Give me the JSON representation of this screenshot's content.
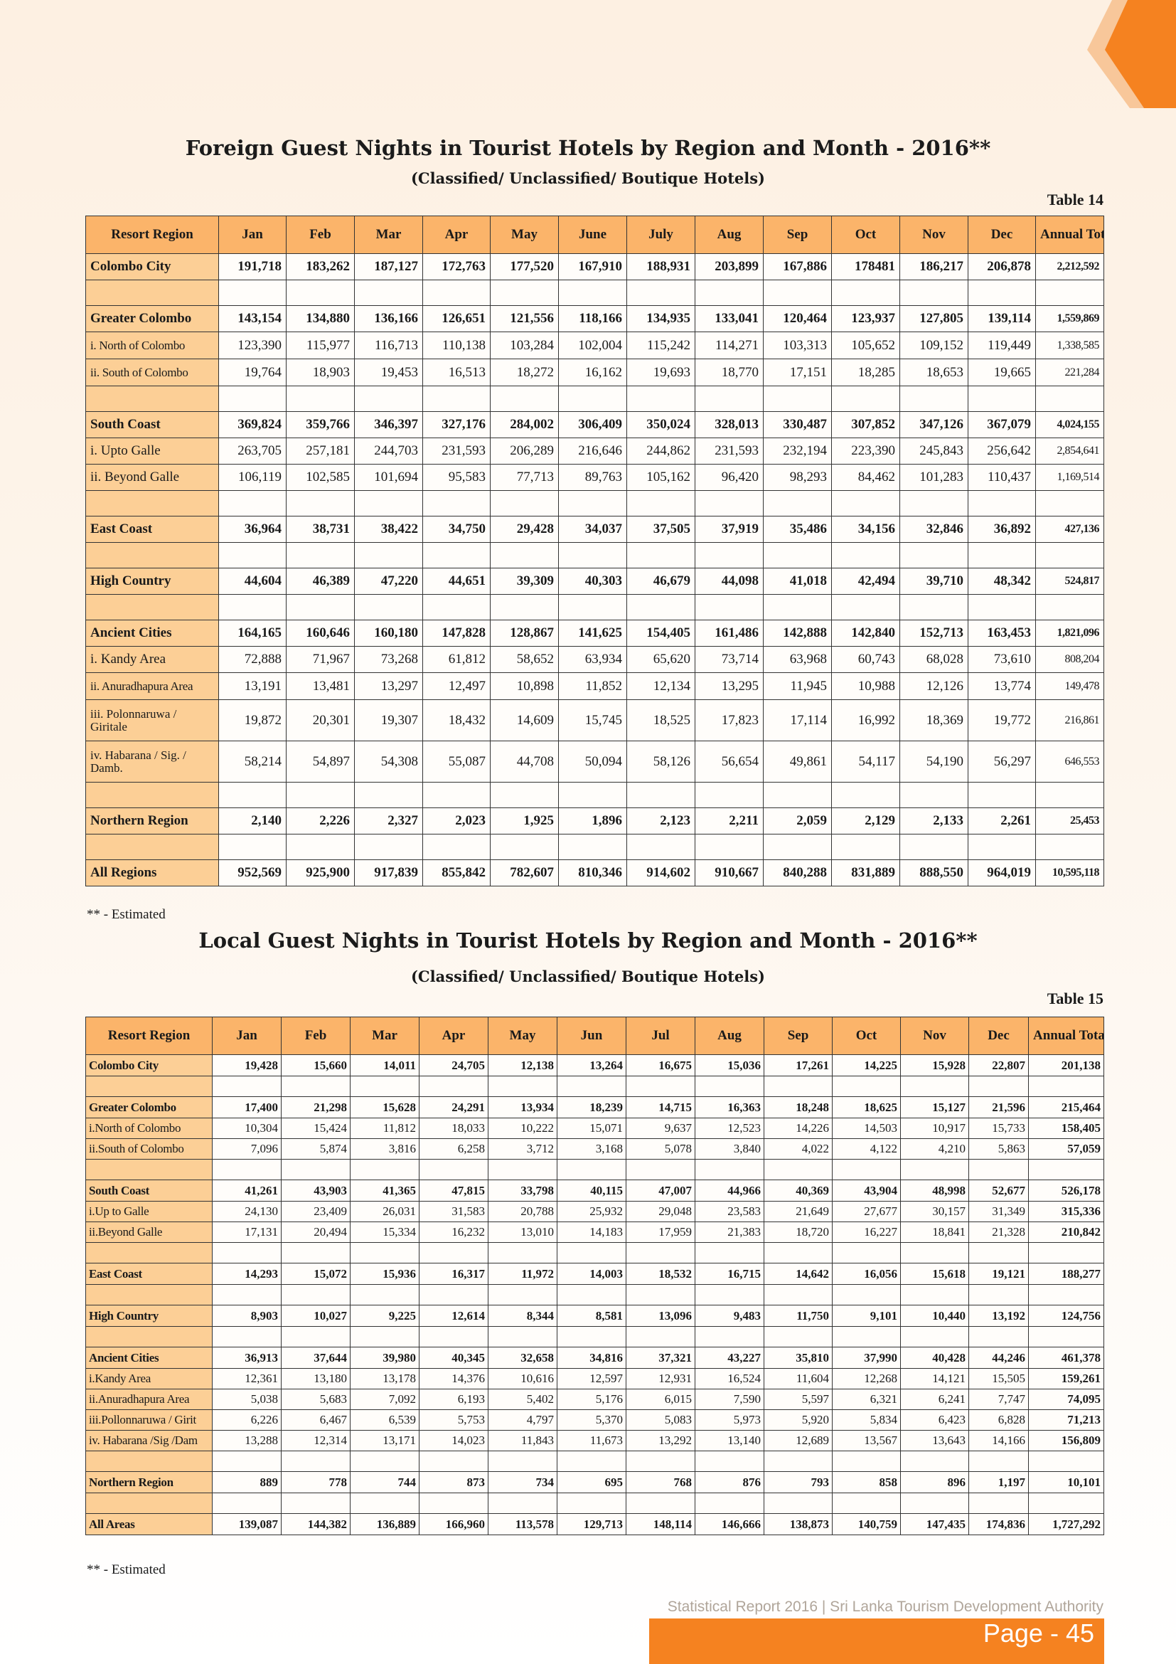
{
  "accent_color": "#f58220",
  "header_fill": "#fbb46a",
  "region_fill": "#fccf96",
  "table14": {
    "title": "Foreign Guest Nights in Tourist Hotels by Region and Month - 2016**",
    "subtitle": "(Classified/ Unclassified/ Boutique Hotels)",
    "label": "Table 14",
    "columns": [
      "Resort Region",
      "Jan",
      "Feb",
      "Mar",
      "Apr",
      "May",
      "June",
      "July",
      "Aug",
      "Sep",
      "Oct",
      "Nov",
      "Dec",
      "Annual Total"
    ],
    "rows": [
      {
        "type": "bold",
        "cells": [
          "Colombo City",
          "191,718",
          "183,262",
          "187,127",
          "172,763",
          "177,520",
          "167,910",
          "188,931",
          "203,899",
          "167,886",
          "178481",
          "186,217",
          "206,878",
          "2,212,592"
        ]
      },
      {
        "type": "blank",
        "cells": [
          "",
          "",
          "",
          "",
          "",
          "",
          "",
          "",
          "",
          "",
          "",
          "",
          "",
          ""
        ]
      },
      {
        "type": "bold",
        "cells": [
          "Greater Colombo",
          "143,154",
          "134,880",
          "136,166",
          "126,651",
          "121,556",
          "118,166",
          "134,935",
          "133,041",
          "120,464",
          "123,937",
          "127,805",
          "139,114",
          "1,559,869"
        ]
      },
      {
        "type": "sub",
        "cells": [
          "i. North of Colombo",
          "123,390",
          "115,977",
          "116,713",
          "110,138",
          "103,284",
          "102,004",
          "115,242",
          "114,271",
          "103,313",
          "105,652",
          "109,152",
          "119,449",
          "1,338,585"
        ]
      },
      {
        "type": "sub",
        "cells": [
          "ii. South of Colombo",
          "19,764",
          "18,903",
          "19,453",
          "16,513",
          "18,272",
          "16,162",
          "19,693",
          "18,770",
          "17,151",
          "18,285",
          "18,653",
          "19,665",
          "221,284"
        ]
      },
      {
        "type": "blank",
        "cells": [
          "",
          "",
          "",
          "",
          "",
          "",
          "",
          "",
          "",
          "",
          "",
          "",
          "",
          ""
        ]
      },
      {
        "type": "bold",
        "cells": [
          "South Coast",
          "369,824",
          "359,766",
          "346,397",
          "327,176",
          "284,002",
          "306,409",
          "350,024",
          "328,013",
          "330,487",
          "307,852",
          "347,126",
          "367,079",
          "4,024,155"
        ]
      },
      {
        "type": "normal",
        "cells": [
          "i. Upto Galle",
          "263,705",
          "257,181",
          "244,703",
          "231,593",
          "206,289",
          "216,646",
          "244,862",
          "231,593",
          "232,194",
          "223,390",
          "245,843",
          "256,642",
          "2,854,641"
        ]
      },
      {
        "type": "normal",
        "cells": [
          "ii. Beyond Galle",
          "106,119",
          "102,585",
          "101,694",
          "95,583",
          "77,713",
          "89,763",
          "105,162",
          "96,420",
          "98,293",
          "84,462",
          "101,283",
          "110,437",
          "1,169,514"
        ]
      },
      {
        "type": "blank",
        "cells": [
          "",
          "",
          "",
          "",
          "",
          "",
          "",
          "",
          "",
          "",
          "",
          "",
          "",
          ""
        ]
      },
      {
        "type": "bold",
        "cells": [
          "East Coast",
          "36,964",
          "38,731",
          "38,422",
          "34,750",
          "29,428",
          "34,037",
          "37,505",
          "37,919",
          "35,486",
          "34,156",
          "32,846",
          "36,892",
          "427,136"
        ]
      },
      {
        "type": "blank",
        "cells": [
          "",
          "",
          "",
          "",
          "",
          "",
          "",
          "",
          "",
          "",
          "",
          "",
          "",
          ""
        ]
      },
      {
        "type": "bold",
        "cells": [
          "High Country",
          "44,604",
          "46,389",
          "47,220",
          "44,651",
          "39,309",
          "40,303",
          "46,679",
          "44,098",
          "41,018",
          "42,494",
          "39,710",
          "48,342",
          "524,817"
        ]
      },
      {
        "type": "blank",
        "cells": [
          "",
          "",
          "",
          "",
          "",
          "",
          "",
          "",
          "",
          "",
          "",
          "",
          "",
          ""
        ]
      },
      {
        "type": "bold",
        "cells": [
          "Ancient Cities",
          "164,165",
          "160,646",
          "160,180",
          "147,828",
          "128,867",
          "141,625",
          "154,405",
          "161,486",
          "142,888",
          "142,840",
          "152,713",
          "163,453",
          "1,821,096"
        ]
      },
      {
        "type": "normal",
        "cells": [
          "i. Kandy Area",
          "72,888",
          "71,967",
          "73,268",
          "61,812",
          "58,652",
          "63,934",
          "65,620",
          "73,714",
          "63,968",
          "60,743",
          "68,028",
          "73,610",
          "808,204"
        ]
      },
      {
        "type": "sub",
        "cells": [
          "ii. Anuradhapura Area",
          "13,191",
          "13,481",
          "13,297",
          "12,497",
          "10,898",
          "11,852",
          "12,134",
          "13,295",
          "11,945",
          "10,988",
          "12,126",
          "13,774",
          "149,478"
        ]
      },
      {
        "type": "wrap",
        "cells": [
          "iii. Polonnaruwa / Giritale",
          "19,872",
          "20,301",
          "19,307",
          "18,432",
          "14,609",
          "15,745",
          "18,525",
          "17,823",
          "17,114",
          "16,992",
          "18,369",
          "19,772",
          "216,861"
        ]
      },
      {
        "type": "wrap",
        "cells": [
          "iv. Habarana / Sig. / Damb.",
          "58,214",
          "54,897",
          "54,308",
          "55,087",
          "44,708",
          "50,094",
          "58,126",
          "56,654",
          "49,861",
          "54,117",
          "54,190",
          "56,297",
          "646,553"
        ]
      },
      {
        "type": "blank",
        "cells": [
          "",
          "",
          "",
          "",
          "",
          "",
          "",
          "",
          "",
          "",
          "",
          "",
          "",
          ""
        ]
      },
      {
        "type": "bold",
        "cells": [
          "Northern Region",
          "2,140",
          "2,226",
          "2,327",
          "2,023",
          "1,925",
          "1,896",
          "2,123",
          "2,211",
          "2,059",
          "2,129",
          "2,133",
          "2,261",
          "25,453"
        ]
      },
      {
        "type": "blank",
        "cells": [
          "",
          "",
          "",
          "",
          "",
          "",
          "",
          "",
          "",
          "",
          "",
          "",
          "",
          ""
        ]
      },
      {
        "type": "bold",
        "cells": [
          "All Regions",
          "952,569",
          "925,900",
          "917,839",
          "855,842",
          "782,607",
          "810,346",
          "914,602",
          "910,667",
          "840,288",
          "831,889",
          "888,550",
          "964,019",
          "10,595,118"
        ]
      }
    ],
    "note": "** - Estimated"
  },
  "table15": {
    "title": "Local Guest Nights in Tourist Hotels by Region and Month - 2016**",
    "subtitle": "(Classified/ Unclassified/ Boutique Hotels)",
    "label": "Table 15",
    "columns": [
      "Resort Region",
      "Jan",
      "Feb",
      "Mar",
      "Apr",
      "May",
      "Jun",
      "Jul",
      "Aug",
      "Sep",
      "Oct",
      "Nov",
      "Dec",
      "Annual Total"
    ],
    "rows": [
      {
        "type": "bold",
        "cells": [
          "Colombo City",
          "19,428",
          "15,660",
          "14,011",
          "24,705",
          "12,138",
          "13,264",
          "16,675",
          "15,036",
          "17,261",
          "14,225",
          "15,928",
          "22,807",
          "201,138"
        ]
      },
      {
        "type": "blank",
        "cells": [
          "",
          "",
          "",
          "",
          "",
          "",
          "",
          "",
          "",
          "",
          "",
          "",
          "",
          ""
        ]
      },
      {
        "type": "bold",
        "cells": [
          "Greater Colombo",
          "17,400",
          "21,298",
          "15,628",
          "24,291",
          "13,934",
          "18,239",
          "14,715",
          "16,363",
          "18,248",
          "18,625",
          "15,127",
          "21,596",
          "215,464"
        ]
      },
      {
        "type": "normal",
        "cells": [
          "i.North of Colombo",
          "10,304",
          "15,424",
          "11,812",
          "18,033",
          "10,222",
          "15,071",
          "9,637",
          "12,523",
          "14,226",
          "14,503",
          "10,917",
          "15,733",
          "158,405"
        ]
      },
      {
        "type": "normal",
        "cells": [
          "ii.South of Colombo",
          "7,096",
          "5,874",
          "3,816",
          "6,258",
          "3,712",
          "3,168",
          "5,078",
          "3,840",
          "4,022",
          "4,122",
          "4,210",
          "5,863",
          "57,059"
        ]
      },
      {
        "type": "blank",
        "cells": [
          "",
          "",
          "",
          "",
          "",
          "",
          "",
          "",
          "",
          "",
          "",
          "",
          "",
          ""
        ]
      },
      {
        "type": "bold",
        "cells": [
          "South Coast",
          "41,261",
          "43,903",
          "41,365",
          "47,815",
          "33,798",
          "40,115",
          "47,007",
          "44,966",
          "40,369",
          "43,904",
          "48,998",
          "52,677",
          "526,178"
        ]
      },
      {
        "type": "normal",
        "cells": [
          "i.Up to Galle",
          "24,130",
          "23,409",
          "26,031",
          "31,583",
          "20,788",
          "25,932",
          "29,048",
          "23,583",
          "21,649",
          "27,677",
          "30,157",
          "31,349",
          "315,336"
        ]
      },
      {
        "type": "normal",
        "cells": [
          "ii.Beyond Galle",
          "17,131",
          "20,494",
          "15,334",
          "16,232",
          "13,010",
          "14,183",
          "17,959",
          "21,383",
          "18,720",
          "16,227",
          "18,841",
          "21,328",
          "210,842"
        ]
      },
      {
        "type": "blank",
        "cells": [
          "",
          "",
          "",
          "",
          "",
          "",
          "",
          "",
          "",
          "",
          "",
          "",
          "",
          ""
        ]
      },
      {
        "type": "bold",
        "cells": [
          "East Coast",
          "14,293",
          "15,072",
          "15,936",
          "16,317",
          "11,972",
          "14,003",
          "18,532",
          "16,715",
          "14,642",
          "16,056",
          "15,618",
          "19,121",
          "188,277"
        ]
      },
      {
        "type": "blank",
        "cells": [
          "",
          "",
          "",
          "",
          "",
          "",
          "",
          "",
          "",
          "",
          "",
          "",
          "",
          ""
        ]
      },
      {
        "type": "bold",
        "cells": [
          "High Country",
          "8,903",
          "10,027",
          "9,225",
          "12,614",
          "8,344",
          "8,581",
          "13,096",
          "9,483",
          "11,750",
          "9,101",
          "10,440",
          "13,192",
          "124,756"
        ]
      },
      {
        "type": "blank",
        "cells": [
          "",
          "",
          "",
          "",
          "",
          "",
          "",
          "",
          "",
          "",
          "",
          "",
          "",
          ""
        ]
      },
      {
        "type": "bold",
        "cells": [
          "Ancient Cities",
          "36,913",
          "37,644",
          "39,980",
          "40,345",
          "32,658",
          "34,816",
          "37,321",
          "43,227",
          "35,810",
          "37,990",
          "40,428",
          "44,246",
          "461,378"
        ]
      },
      {
        "type": "normal",
        "cells": [
          "i.Kandy Area",
          "12,361",
          "13,180",
          "13,178",
          "14,376",
          "10,616",
          "12,597",
          "12,931",
          "16,524",
          "11,604",
          "12,268",
          "14,121",
          "15,505",
          "159,261"
        ]
      },
      {
        "type": "normal",
        "cells": [
          "ii.Anuradhapura Area",
          "5,038",
          "5,683",
          "7,092",
          "6,193",
          "5,402",
          "5,176",
          "6,015",
          "7,590",
          "5,597",
          "6,321",
          "6,241",
          "7,747",
          "74,095"
        ]
      },
      {
        "type": "normal",
        "cells": [
          "iii.Pollonnaruwa / Girit",
          "6,226",
          "6,467",
          "6,539",
          "5,753",
          "4,797",
          "5,370",
          "5,083",
          "5,973",
          "5,920",
          "5,834",
          "6,423",
          "6,828",
          "71,213"
        ]
      },
      {
        "type": "normal",
        "cells": [
          "iv. Habarana /Sig /Dam",
          "13,288",
          "12,314",
          "13,171",
          "14,023",
          "11,843",
          "11,673",
          "13,292",
          "13,140",
          "12,689",
          "13,567",
          "13,643",
          "14,166",
          "156,809"
        ]
      },
      {
        "type": "blank",
        "cells": [
          "",
          "",
          "",
          "",
          "",
          "",
          "",
          "",
          "",
          "",
          "",
          "",
          "",
          ""
        ]
      },
      {
        "type": "bold",
        "cells": [
          "Northern Region",
          "889",
          "778",
          "744",
          "873",
          "734",
          "695",
          "768",
          "876",
          "793",
          "858",
          "896",
          "1,197",
          "10,101"
        ]
      },
      {
        "type": "blank",
        "cells": [
          "",
          "",
          "",
          "",
          "",
          "",
          "",
          "",
          "",
          "",
          "",
          "",
          "",
          ""
        ]
      },
      {
        "type": "bold",
        "cells": [
          "All Areas",
          "139,087",
          "144,382",
          "136,889",
          "166,960",
          "113,578",
          "129,713",
          "148,114",
          "146,666",
          "138,873",
          "140,759",
          "147,435",
          "174,836",
          "1,727,292"
        ]
      }
    ],
    "note": "** -   Estimated"
  },
  "footer": {
    "report": "Statistical Report 2016  |  Sri Lanka Tourism Development Authority",
    "page": "Page - 45"
  }
}
